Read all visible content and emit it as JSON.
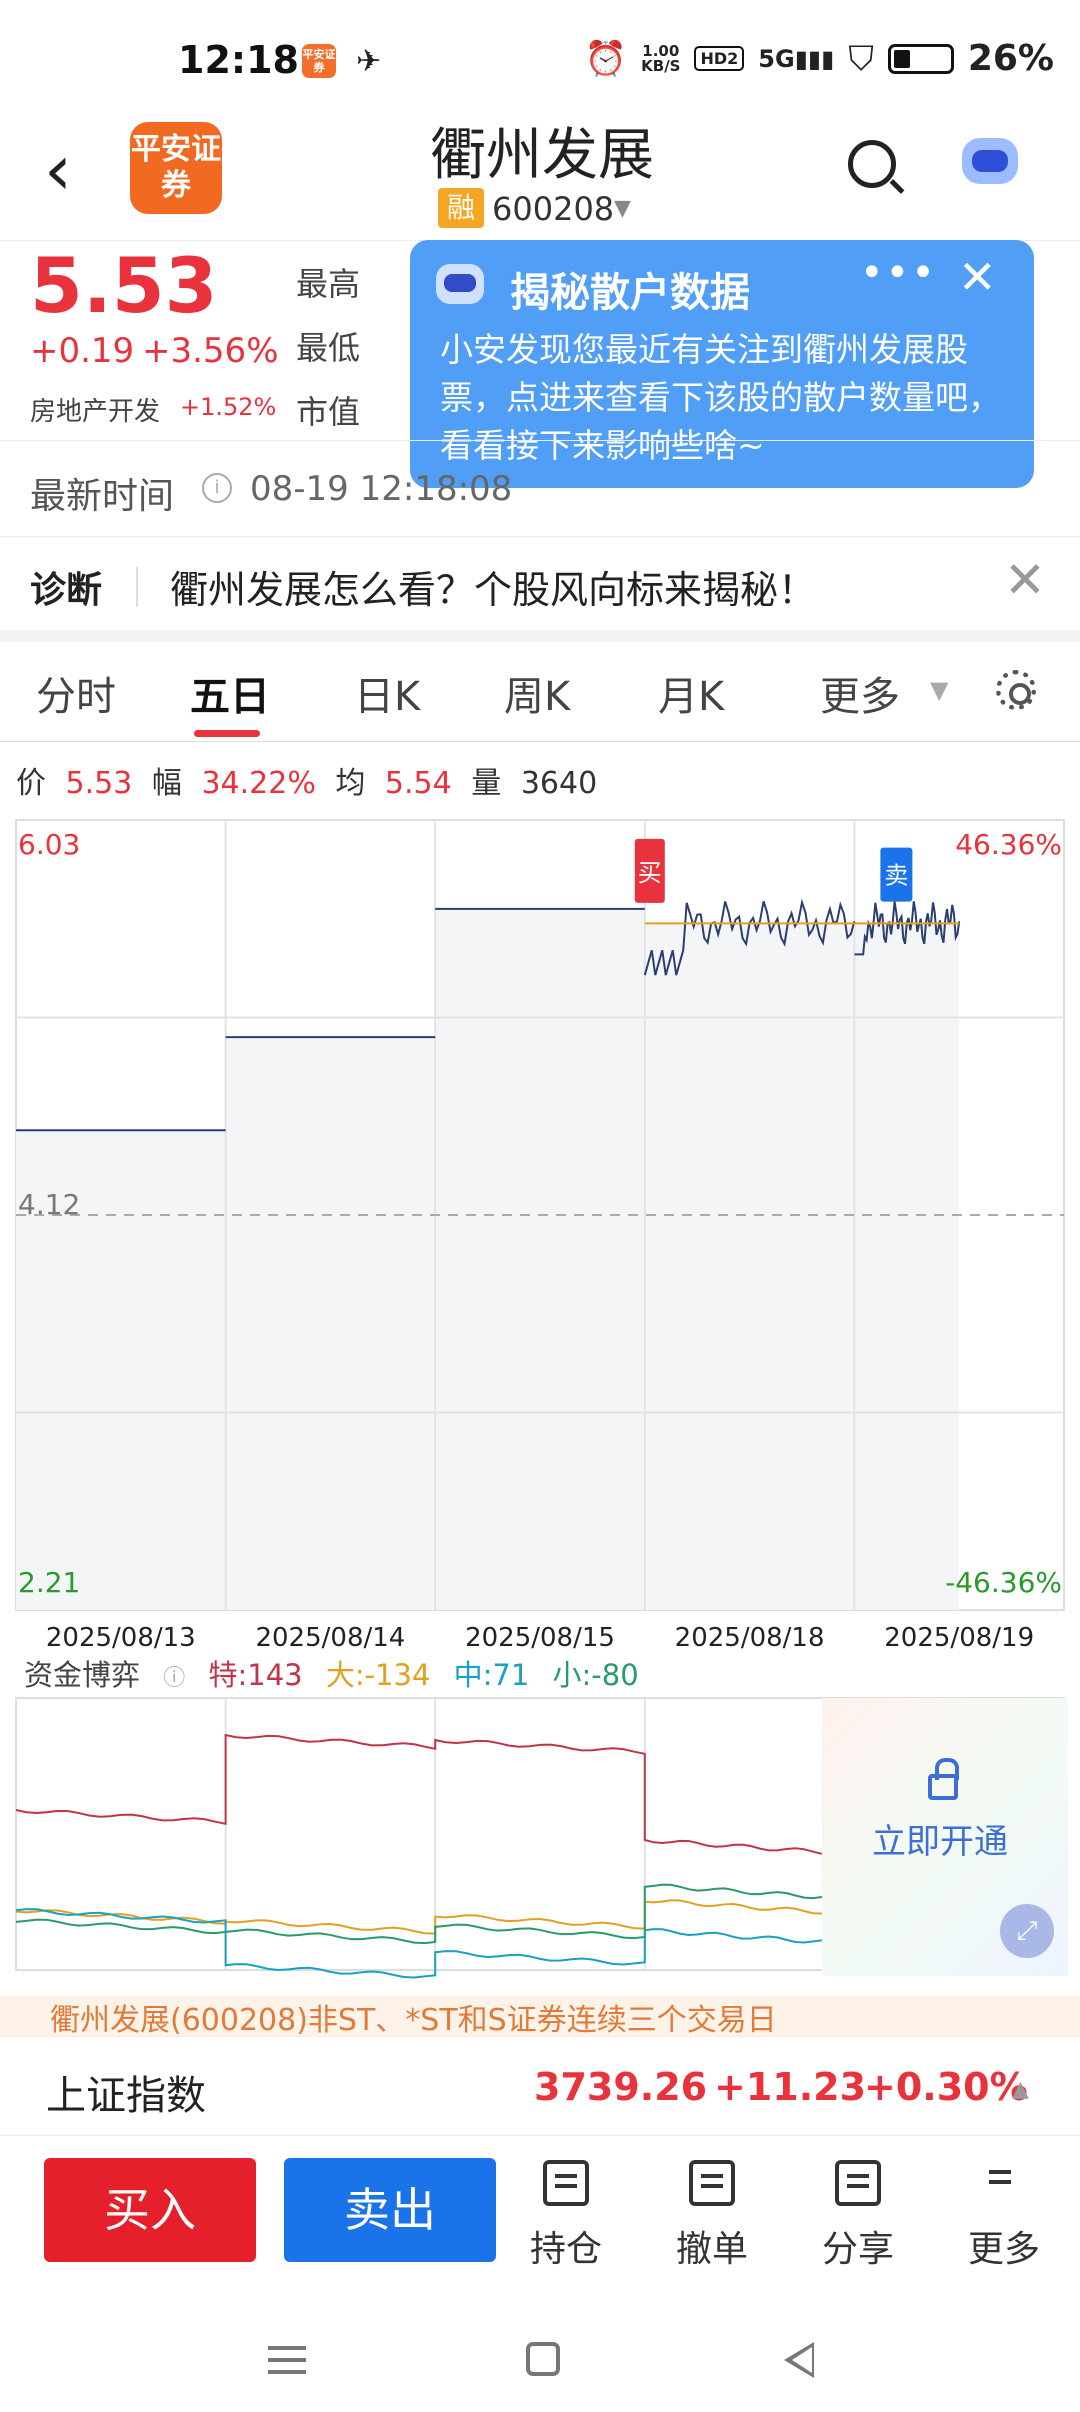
{
  "status_bar": {
    "time": "12:18",
    "app_badge": "平安证券",
    "net_speed": "1.00",
    "net_unit": "KB/S",
    "hd": "HD2",
    "network": "5G",
    "battery_pct": "26%"
  },
  "header": {
    "stock_name": "衢州发展",
    "margin_tag": "融",
    "stock_code": "600208",
    "logo_text": "平安证券"
  },
  "quote": {
    "price": "5.53",
    "change": "+0.19",
    "change_pct": "+3.56%",
    "sector": "房地产开发",
    "sector_change": "+1.52%",
    "high_label": "最高",
    "low_label": "最低",
    "mktcap_label": "市值"
  },
  "popup": {
    "title": "揭秘散户数据",
    "body": "小安发现您最近有关注到衢州发展股票，点进来查看下该股的散户数量吧，看看接下来影响些啥~"
  },
  "update_time": {
    "label": "最新时间",
    "value": "08-19 12:18:08"
  },
  "diagnosis": {
    "tag": "诊断",
    "text": "衢州发展怎么看？个股风向标来揭秘！"
  },
  "tabs": [
    {
      "label": "分时"
    },
    {
      "label": "五日"
    },
    {
      "label": "日K"
    },
    {
      "label": "周K"
    },
    {
      "label": "月K"
    },
    {
      "label": "更多"
    }
  ],
  "price_info": {
    "price_label": "价",
    "price": "5.53",
    "amp_label": "幅",
    "amp": "34.22%",
    "avg_label": "均",
    "avg": "5.54",
    "vol_label": "量",
    "vol": "3640"
  },
  "chart_data": {
    "type": "line",
    "y_left_top": "6.03",
    "y_left_mid": "4.12",
    "y_left_bottom": "2.21",
    "y_right_top": "46.36%",
    "y_right_bottom": "-46.36%",
    "ylim": [
      2.21,
      6.03
    ],
    "x": [
      "2025/08/13",
      "2025/08/14",
      "2025/08/15",
      "2025/08/18",
      "2025/08/19"
    ],
    "series": [
      {
        "values": [
          4.53,
          4.98,
          5.6,
          5.53,
          5.53
        ]
      }
    ],
    "buy_marker": "买",
    "sell_marker": "卖"
  },
  "fund_flow": {
    "label": "资金博弈",
    "special": "特:143",
    "large": "大:-134",
    "medium": "中:71",
    "small": "小:-80",
    "unlock_text": "立即开通",
    "colors": {
      "special": "#c0344a",
      "large": "#e0a020",
      "medium": "#1aa0c0",
      "small": "#2a9a6a"
    }
  },
  "marquee": "衢州发展(600208)非ST、*ST和S证券连续三个交易日",
  "index": {
    "name": "上证指数",
    "value": "3739.26",
    "change": "+11.23",
    "change_pct": "+0.30%"
  },
  "bottom_bar": {
    "buy": "买入",
    "sell": "卖出",
    "hold": "持仓",
    "cancel": "撤单",
    "share": "分享",
    "more": "更多"
  },
  "colors": {
    "up": "#e8323c",
    "down": "#2a9a2a",
    "accent": "#1a73e8"
  }
}
